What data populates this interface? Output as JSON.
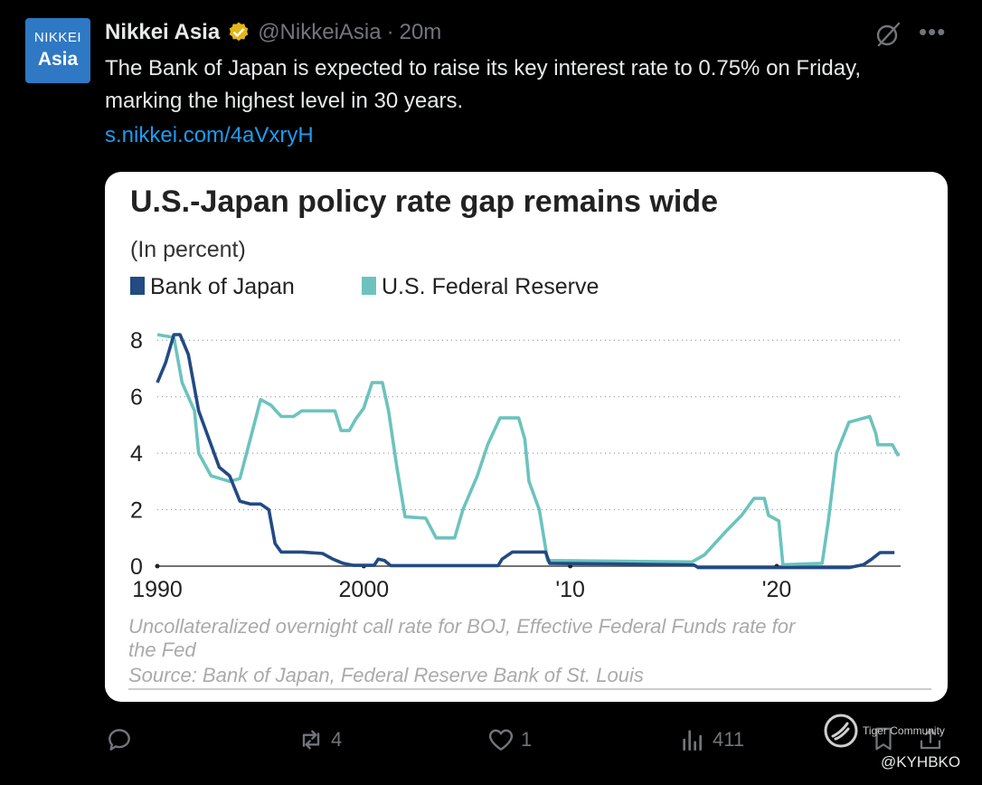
{
  "avatar": {
    "line1": "NIKKEI",
    "line2": "Asia"
  },
  "author": {
    "name": "Nikkei Asia",
    "handle": "@NikkeiAsia",
    "separator": "·",
    "time": "20m"
  },
  "tweet": {
    "text": "The Bank of Japan is expected to raise its key interest rate to 0.75% on Friday, marking the highest level in 30 years.",
    "link": "s.nikkei.com/4aVxryH"
  },
  "chart_data": {
    "type": "line",
    "title": "U.S.-Japan policy rate gap remains wide",
    "subtitle": "(In percent)",
    "legend": [
      "Bank of Japan",
      "U.S. Federal Reserve"
    ],
    "legend_placement": "top-left",
    "y_ticks": [
      "8",
      "6",
      "4",
      "2",
      "0"
    ],
    "x_ticks": [
      "1990",
      "2000",
      "'10",
      "'20"
    ],
    "ylim": [
      0,
      8.2
    ],
    "xlim": [
      1990,
      2026
    ],
    "grid": true,
    "colors": {
      "boj": "#224a83",
      "fed": "#6cc3bd"
    },
    "note": "Uncollateralized overnight call rate for BOJ, Effective Federal Funds rate for the Fed",
    "source": "Source: Bank of Japan, Federal Reserve Bank of St. Louis",
    "series": [
      {
        "name": "Bank of Japan",
        "points": [
          [
            1990,
            6.5
          ],
          [
            1990.4,
            7.2
          ],
          [
            1990.8,
            8.2
          ],
          [
            1991.1,
            8.2
          ],
          [
            1991.5,
            7.5
          ],
          [
            1992,
            5.5
          ],
          [
            1992.5,
            4.5
          ],
          [
            1993,
            3.5
          ],
          [
            1993.5,
            3.2
          ],
          [
            1994,
            2.3
          ],
          [
            1994.5,
            2.2
          ],
          [
            1995,
            2.2
          ],
          [
            1995.4,
            2.0
          ],
          [
            1995.7,
            0.8
          ],
          [
            1996,
            0.5
          ],
          [
            1997,
            0.5
          ],
          [
            1998,
            0.45
          ],
          [
            1998.5,
            0.25
          ],
          [
            1999,
            0.1
          ],
          [
            1999.5,
            0.03
          ],
          [
            2000.5,
            0.03
          ],
          [
            2000.7,
            0.25
          ],
          [
            2001,
            0.2
          ],
          [
            2001.3,
            0.02
          ],
          [
            2006.5,
            0.02
          ],
          [
            2006.7,
            0.25
          ],
          [
            2007.2,
            0.5
          ],
          [
            2008.8,
            0.5
          ],
          [
            2009,
            0.1
          ],
          [
            2012,
            0.08
          ],
          [
            2016,
            0.04
          ],
          [
            2016.2,
            -0.05
          ],
          [
            2023.5,
            -0.05
          ],
          [
            2024.2,
            0.05
          ],
          [
            2024.6,
            0.25
          ],
          [
            2025,
            0.48
          ],
          [
            2025.7,
            0.48
          ]
        ]
      },
      {
        "name": "U.S. Federal Reserve",
        "points": [
          [
            1990,
            8.2
          ],
          [
            1990.8,
            8.1
          ],
          [
            1991.2,
            6.5
          ],
          [
            1991.8,
            5.5
          ],
          [
            1992,
            4.0
          ],
          [
            1992.6,
            3.2
          ],
          [
            1993.5,
            3.0
          ],
          [
            1994,
            3.1
          ],
          [
            1994.5,
            4.5
          ],
          [
            1995,
            5.9
          ],
          [
            1995.5,
            5.7
          ],
          [
            1996,
            5.3
          ],
          [
            1996.6,
            5.3
          ],
          [
            1997,
            5.5
          ],
          [
            1998,
            5.5
          ],
          [
            1998.6,
            5.5
          ],
          [
            1998.9,
            4.8
          ],
          [
            1999.3,
            4.8
          ],
          [
            1999.6,
            5.2
          ],
          [
            2000,
            5.6
          ],
          [
            2000.4,
            6.5
          ],
          [
            2000.9,
            6.5
          ],
          [
            2001.2,
            5.5
          ],
          [
            2001.6,
            3.5
          ],
          [
            2002,
            1.75
          ],
          [
            2003,
            1.7
          ],
          [
            2003.5,
            1.0
          ],
          [
            2004.4,
            1.0
          ],
          [
            2004.8,
            2.0
          ],
          [
            2005.5,
            3.2
          ],
          [
            2006,
            4.3
          ],
          [
            2006.6,
            5.25
          ],
          [
            2007.5,
            5.25
          ],
          [
            2007.8,
            4.5
          ],
          [
            2008,
            3.0
          ],
          [
            2008.5,
            2.0
          ],
          [
            2008.9,
            0.2
          ],
          [
            2015.9,
            0.15
          ],
          [
            2016.5,
            0.4
          ],
          [
            2017.5,
            1.2
          ],
          [
            2018.3,
            1.8
          ],
          [
            2018.9,
            2.4
          ],
          [
            2019.4,
            2.4
          ],
          [
            2019.6,
            1.8
          ],
          [
            2020.1,
            1.6
          ],
          [
            2020.3,
            0.05
          ],
          [
            2022.2,
            0.1
          ],
          [
            2022.5,
            1.6
          ],
          [
            2022.9,
            4.0
          ],
          [
            2023.5,
            5.1
          ],
          [
            2024.5,
            5.3
          ],
          [
            2024.8,
            4.7
          ],
          [
            2024.9,
            4.3
          ],
          [
            2025.6,
            4.3
          ],
          [
            2025.9,
            3.9
          ]
        ]
      }
    ]
  },
  "actions": {
    "reply": "",
    "retweet": "4",
    "like": "1",
    "views": "411"
  },
  "watermark": {
    "site": "Tiger Community",
    "handle": "@KYHBKO"
  }
}
